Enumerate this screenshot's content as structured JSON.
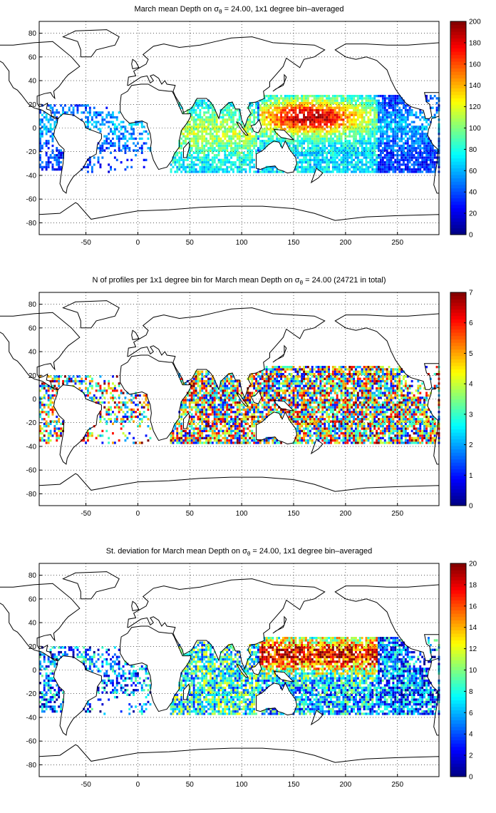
{
  "chart_data": [
    {
      "type": "heatmap",
      "title_prefix": "March mean Depth on ",
      "sigma_symbol": "σ",
      "sigma_subscript": "θ",
      "title_suffix": " = 24.00, 1x1 degree bin–averaged",
      "xlabel": "",
      "ylabel": "",
      "xlim": [
        -95,
        290
      ],
      "ylim": [
        -90,
        90
      ],
      "xticks": [
        "-50",
        "0",
        "50",
        "100",
        "150",
        "200",
        "250"
      ],
      "yticks": [
        "80",
        "60",
        "40",
        "20",
        "0",
        "-20",
        "-40",
        "-60",
        "-80"
      ],
      "grid": true,
      "colorbar": {
        "range": [
          0,
          200
        ],
        "ticks": [
          "200",
          "180",
          "160",
          "140",
          "120",
          "100",
          "80",
          "60",
          "40",
          "20",
          "0"
        ],
        "colormap": "jet"
      },
      "field": "depth"
    },
    {
      "type": "heatmap",
      "title_prefix": "N of profiles per 1x1 degree bin for March mean Depth on ",
      "sigma_symbol": "σ",
      "sigma_subscript": "θ",
      "title_suffix": " = 24.00 (24721 in total)",
      "xlabel": "",
      "ylabel": "",
      "xlim": [
        -95,
        290
      ],
      "ylim": [
        -90,
        90
      ],
      "xticks": [
        "-50",
        "0",
        "50",
        "100",
        "150",
        "200",
        "250"
      ],
      "yticks": [
        "80",
        "60",
        "40",
        "20",
        "0",
        "-20",
        "-40",
        "-60",
        "-80"
      ],
      "grid": true,
      "colorbar": {
        "range": [
          0,
          7
        ],
        "ticks": [
          "7",
          "6",
          "5",
          "4",
          "3",
          "2",
          "1",
          "0"
        ],
        "colormap": "jet"
      },
      "field": "count"
    },
    {
      "type": "heatmap",
      "title_prefix": "St. deviation for March mean Depth on ",
      "sigma_symbol": "σ",
      "sigma_subscript": "θ",
      "title_suffix": " = 24.00, 1x1 degree bin–averaged",
      "xlabel": "",
      "ylabel": "",
      "xlim": [
        -95,
        290
      ],
      "ylim": [
        -90,
        90
      ],
      "xticks": [
        "-50",
        "0",
        "50",
        "100",
        "150",
        "200",
        "250"
      ],
      "yticks": [
        "80",
        "60",
        "40",
        "20",
        "0",
        "-20",
        "-40",
        "-60",
        "-80"
      ],
      "grid": true,
      "colorbar": {
        "range": [
          0,
          20
        ],
        "ticks": [
          "20",
          "18",
          "16",
          "14",
          "12",
          "10",
          "8",
          "6",
          "4",
          "2",
          "0"
        ],
        "colormap": "jet"
      },
      "field": "std"
    }
  ]
}
